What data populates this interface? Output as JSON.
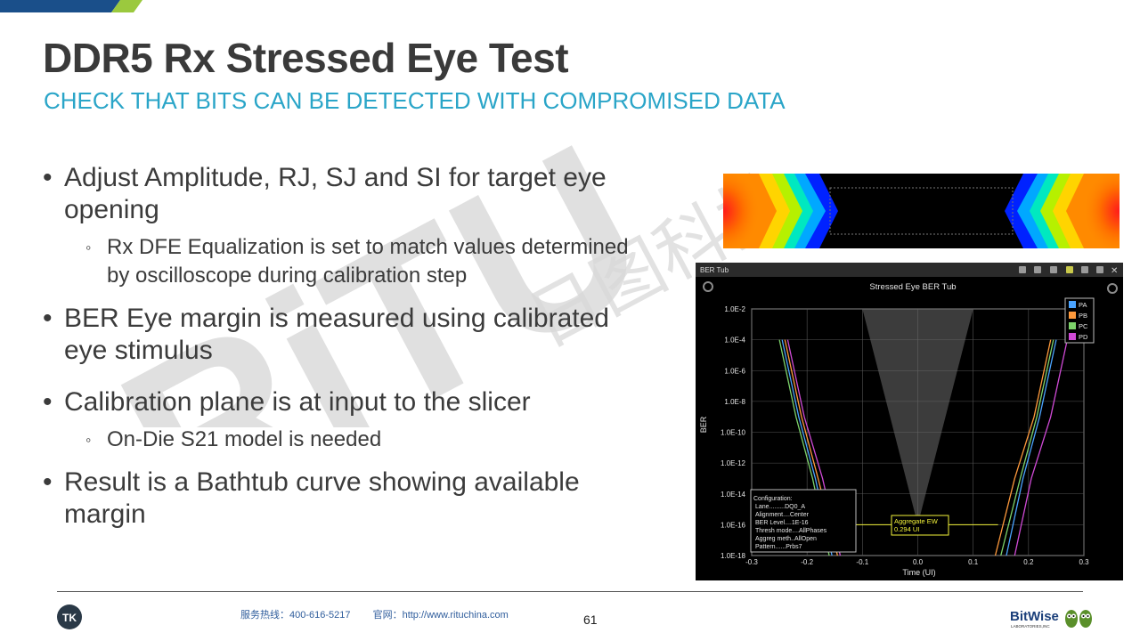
{
  "slide": {
    "title": "DDR5 Rx Stressed Eye Test",
    "subtitle": "CHECK THAT BITS CAN BE DETECTED WITH COMPROMISED DATA",
    "page_number": "61"
  },
  "bullets": [
    {
      "text": "Adjust Amplitude, RJ, SJ and SI for target eye opening",
      "line1": "Adjust Amplitude, RJ, SJ and SI for target eye",
      "line2": "opening",
      "sub": {
        "line1": "Rx DFE Equalization is set to match values determined",
        "line2": "by oscilloscope during calibration step"
      }
    },
    {
      "line1": "BER Eye margin is measured using calibrated",
      "line2": "eye stimulus"
    },
    {
      "line1": "Calibration plane is at input to the slicer",
      "sub": {
        "line1": "On-Die S21 model is needed"
      }
    },
    {
      "line1": "Result is a Bathtub curve showing available",
      "line2": "margin"
    }
  ],
  "watermark": {
    "latin": "RiTU",
    "cjk": "日图科技"
  },
  "footer": {
    "hotline": "服务热线：400-616-5217",
    "website": "官网：http://www.rituchina.com",
    "left_logo_text": "TK",
    "right_logo_text": "BitWise",
    "right_logo_sub": "LABORATORIES,INC"
  },
  "ber_window": {
    "title": "BER Tub",
    "plot_title": "Stressed Eye BER Tub",
    "ylabel": "BER",
    "xlabel": "Time (UI)",
    "config_lines": [
      "Configuration:",
      "Lane.........DQ0_A",
      "Alignment....Center",
      "BER Level....1E-16",
      "Thresh mode....AllPhases",
      "Aggreg meth..AllOpen",
      "Pattern......Prbs7"
    ],
    "aggregate_label": "Aggregate EW",
    "aggregate_value": "0.294 UI"
  },
  "chart_data": {
    "type": "line",
    "title": "Stressed Eye BER Tub",
    "xlabel": "Time (UI)",
    "ylabel": "BER",
    "xlim": [
      -0.3,
      0.3
    ],
    "ylim_log10": [
      -18,
      -2
    ],
    "x_ticks": [
      "-0.3",
      "-0.2",
      "-0.1",
      "0.0",
      "0.1",
      "0.2",
      "0.3"
    ],
    "y_ticks": [
      "1.0E-2",
      "1.0E-4",
      "1.0E-6",
      "1.0E-8",
      "1.0E-10",
      "1.0E-12",
      "1.0E-14",
      "1.0E-16",
      "1.0E-18"
    ],
    "legend_position": "top-right",
    "grid": true,
    "series": [
      {
        "name": "PA",
        "color": "#4aa3ff",
        "left": [
          [
            -0.245,
            -4
          ],
          [
            -0.215,
            -9
          ],
          [
            -0.185,
            -13
          ],
          [
            -0.155,
            -18
          ]
        ],
        "right": [
          [
            0.25,
            -4
          ],
          [
            0.22,
            -9
          ],
          [
            0.19,
            -13
          ],
          [
            0.16,
            -18
          ]
        ]
      },
      {
        "name": "PB",
        "color": "#ff9a3c",
        "left": [
          [
            -0.24,
            -4
          ],
          [
            -0.21,
            -9
          ],
          [
            -0.18,
            -13
          ],
          [
            -0.145,
            -18
          ]
        ],
        "right": [
          [
            0.24,
            -4
          ],
          [
            0.21,
            -9
          ],
          [
            0.175,
            -13
          ],
          [
            0.14,
            -18
          ]
        ]
      },
      {
        "name": "PC",
        "color": "#7dd36a",
        "left": [
          [
            -0.25,
            -4
          ],
          [
            -0.22,
            -9
          ],
          [
            -0.19,
            -13
          ],
          [
            -0.16,
            -18
          ]
        ],
        "right": [
          [
            0.245,
            -4
          ],
          [
            0.215,
            -9
          ],
          [
            0.185,
            -13
          ],
          [
            0.15,
            -18
          ]
        ]
      },
      {
        "name": "PD",
        "color": "#d04ad6",
        "left": [
          [
            -0.235,
            -4
          ],
          [
            -0.205,
            -9
          ],
          [
            -0.172,
            -13
          ],
          [
            -0.14,
            -18
          ]
        ],
        "right": [
          [
            0.27,
            -4
          ],
          [
            0.24,
            -9
          ],
          [
            0.205,
            -13
          ],
          [
            0.175,
            -18
          ]
        ]
      }
    ]
  },
  "colors": {
    "title": "#3a3a3a",
    "subtitle": "#2aa5c8",
    "accent_green": "#9bc93e",
    "accent_blue": "#1a4f8a"
  }
}
